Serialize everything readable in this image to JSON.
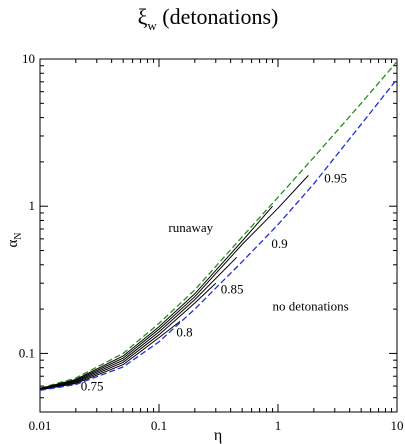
{
  "chart_data": {
    "type": "line",
    "title": "ξ_w (detonations)",
    "title_main": "ξ",
    "title_sub": "w",
    "title_rest": " (detonations)",
    "xlabel": "η",
    "ylabel_main": "α",
    "ylabel_sub": "N",
    "xscale": "log",
    "yscale": "log",
    "xlim": [
      0.01,
      10
    ],
    "ylim": [
      0.04,
      10
    ],
    "grid": false,
    "xticks": [
      {
        "value": 0.01,
        "label": "0.01"
      },
      {
        "value": 0.1,
        "label": "0.1"
      },
      {
        "value": 1,
        "label": "1"
      },
      {
        "value": 10,
        "label": "10"
      }
    ],
    "yticks": [
      {
        "value": 0.1,
        "label": "0.1"
      },
      {
        "value": 1,
        "label": "1"
      },
      {
        "value": 10,
        "label": "10"
      }
    ],
    "series": [
      {
        "color": "#2a8a1e",
        "dash": true,
        "x": [
          0.01,
          0.02,
          0.05,
          0.1,
          0.2,
          0.5,
          1,
          2,
          5,
          10
        ],
        "y": [
          0.058,
          0.068,
          0.1,
          0.16,
          0.27,
          0.62,
          1.15,
          2.15,
          5.0,
          9.6
        ]
      },
      {
        "color": "#000000",
        "dash": false,
        "x": [
          0.01,
          0.02,
          0.05,
          0.1,
          0.2,
          0.5,
          0.9
        ],
        "y": [
          0.0578,
          0.0665,
          0.096,
          0.152,
          0.254,
          0.58,
          1.0
        ]
      },
      {
        "color": "#000000",
        "dash": false,
        "x": [
          0.01,
          0.02,
          0.05,
          0.1,
          0.2,
          0.5,
          1,
          1.8
        ],
        "y": [
          0.0574,
          0.0655,
          0.093,
          0.146,
          0.243,
          0.55,
          0.97,
          1.62
        ]
      },
      {
        "color": "#000000",
        "dash": false,
        "x": [
          0.01,
          0.02,
          0.05,
          0.1,
          0.2,
          0.45
        ],
        "y": [
          0.0571,
          0.0645,
          0.09,
          0.14,
          0.232,
          0.45
        ]
      },
      {
        "color": "#000000",
        "dash": false,
        "x": [
          0.01,
          0.02,
          0.05,
          0.1,
          0.2,
          0.3
        ],
        "y": [
          0.0568,
          0.0635,
          0.087,
          0.134,
          0.22,
          0.3
        ]
      },
      {
        "color": "#000000",
        "dash": false,
        "x": [
          0.01,
          0.02,
          0.05,
          0.1,
          0.15
        ],
        "y": [
          0.0565,
          0.0625,
          0.084,
          0.128,
          0.165
        ]
      },
      {
        "color": "#1f2fd6",
        "dash": true,
        "x": [
          0.01,
          0.02,
          0.05,
          0.1,
          0.2,
          0.5,
          1,
          2,
          5,
          10
        ],
        "y": [
          0.0562,
          0.0615,
          0.081,
          0.12,
          0.2,
          0.42,
          0.75,
          1.42,
          3.6,
          7.3
        ]
      }
    ],
    "annotations": [
      {
        "text": "0.95",
        "x": 2.45,
        "y": 1.45
      },
      {
        "text": "0.9",
        "x": 0.88,
        "y": 0.52
      },
      {
        "text": "0.85",
        "x": 0.33,
        "y": 0.255
      },
      {
        "text": "0.8",
        "x": 0.14,
        "y": 0.13
      },
      {
        "text": "0.75",
        "x": 0.022,
        "y": 0.056
      },
      {
        "text": "runaway",
        "x": 0.12,
        "y": 0.67
      },
      {
        "text": "no detonations",
        "x": 0.9,
        "y": 0.195
      }
    ]
  }
}
